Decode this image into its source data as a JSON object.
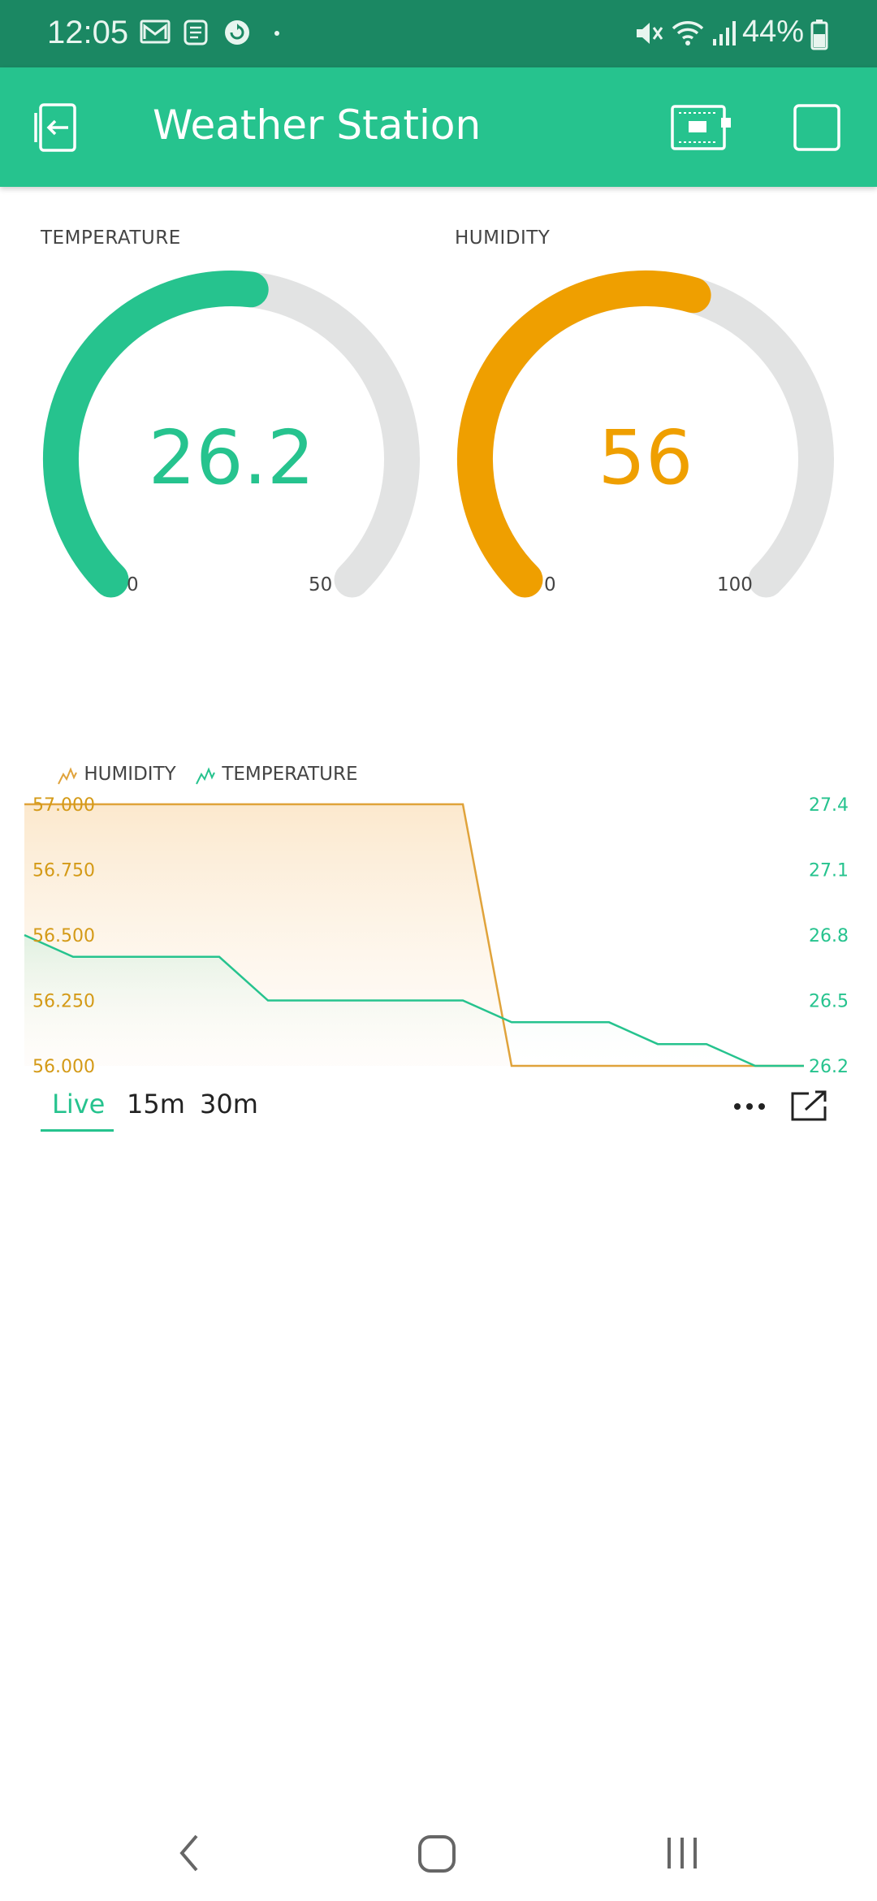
{
  "status_bar": {
    "time": "12:05",
    "battery": "44%",
    "icons": [
      "gmail-icon",
      "notes-icon",
      "sync-icon",
      "dot-icon",
      "mute-icon",
      "wifi-icon",
      "signal-icon",
      "battery-icon"
    ]
  },
  "app_bar": {
    "title": "Weather Station",
    "left_icon": "exit-icon",
    "right_icons": [
      "device-icon",
      "square-icon"
    ],
    "color": "#26c38e"
  },
  "gauges": [
    {
      "label": "TEMPERATURE",
      "value": "26.2",
      "min": "0",
      "max": "50",
      "level": 0.524,
      "color": "#26c38e"
    },
    {
      "label": "HUMIDITY",
      "value": "56",
      "min": "0",
      "max": "100",
      "level": 0.56,
      "color": "#ef9f00"
    }
  ],
  "chart_data": {
    "type": "line",
    "legend": [
      "HUMIDITY",
      "TEMPERATURE"
    ],
    "series": [
      {
        "name": "HUMIDITY",
        "color": "#e0a33b",
        "axis": "left",
        "x": [
          0,
          1,
          2,
          3,
          4,
          5,
          6,
          7,
          8,
          9,
          10,
          11,
          12,
          13,
          14,
          15,
          16
        ],
        "values": [
          57.0,
          57.0,
          57.0,
          57.0,
          57.0,
          57.0,
          57.0,
          57.0,
          57.0,
          57.0,
          56.0,
          56.0,
          56.0,
          56.0,
          56.0,
          56.0,
          56.0
        ]
      },
      {
        "name": "TEMPERATURE",
        "color": "#26c38e",
        "axis": "right",
        "x": [
          0,
          1,
          2,
          3,
          4,
          5,
          6,
          7,
          8,
          9,
          10,
          11,
          12,
          13,
          14,
          15,
          16
        ],
        "values": [
          26.8,
          26.7,
          26.7,
          26.7,
          26.7,
          26.5,
          26.5,
          26.5,
          26.5,
          26.5,
          26.4,
          26.4,
          26.4,
          26.3,
          26.3,
          26.2,
          26.2
        ]
      }
    ],
    "left_axis": {
      "ticks": [
        "57.000",
        "56.750",
        "56.500",
        "56.250",
        "56.000"
      ],
      "range": [
        56.0,
        57.0
      ]
    },
    "right_axis": {
      "ticks": [
        "27.4",
        "27.1",
        "26.8",
        "26.5",
        "26.2"
      ],
      "range": [
        26.2,
        27.4
      ]
    }
  },
  "chart_tabs": [
    "Live",
    "15m",
    "30m"
  ],
  "chart_actions": [
    "more-icon",
    "export-icon"
  ],
  "nav_bar": [
    "back-icon",
    "home-icon",
    "recents-icon"
  ]
}
